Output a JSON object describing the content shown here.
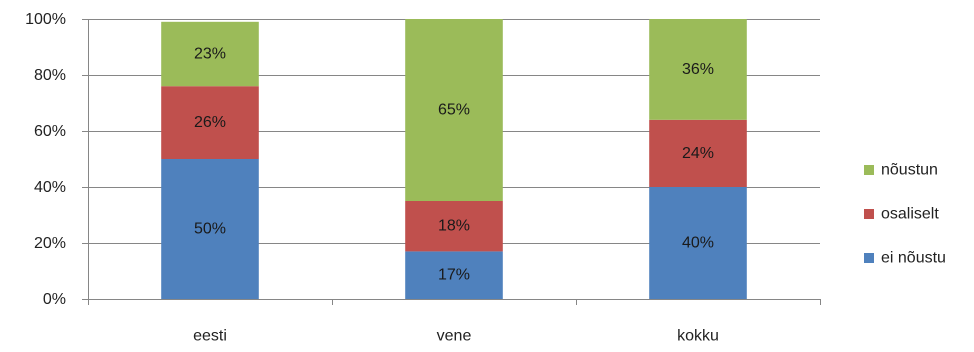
{
  "chart_data": {
    "type": "bar",
    "stacked": true,
    "categories": [
      "eesti",
      "vene",
      "kokku"
    ],
    "series": [
      {
        "name": "ei nõustu",
        "color": "#4f81bd",
        "values": [
          50,
          17,
          40
        ],
        "labels": [
          "50%",
          "17%",
          "40%"
        ]
      },
      {
        "name": "osaliselt",
        "color": "#c0504d",
        "values": [
          26,
          18,
          24
        ],
        "labels": [
          "26%",
          "18%",
          "24%"
        ]
      },
      {
        "name": "nõustun",
        "color": "#9bbb59",
        "values": [
          23,
          65,
          36
        ],
        "labels": [
          "23%",
          "65%",
          "36%"
        ]
      }
    ],
    "ylim": [
      0,
      100
    ],
    "yticks": [
      "0%",
      "20%",
      "40%",
      "60%",
      "80%",
      "100%"
    ],
    "grid": true,
    "legend_position": "right",
    "legend_order": [
      "nõustun",
      "osaliselt",
      "ei nõustu"
    ]
  }
}
